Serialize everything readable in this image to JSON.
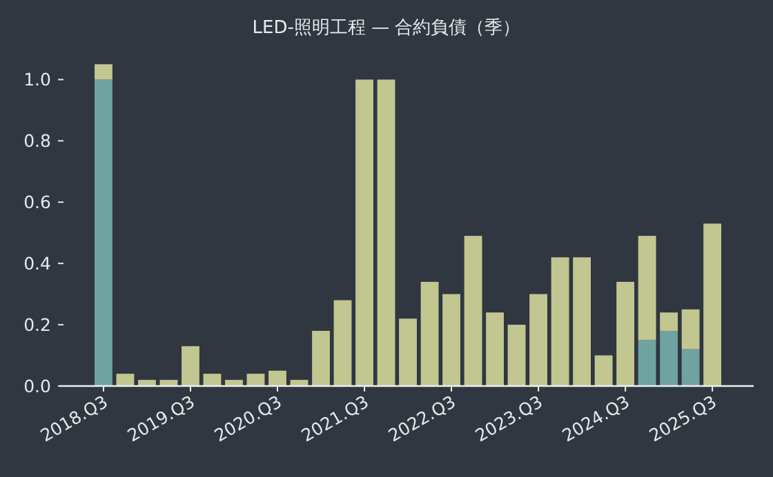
{
  "chart_data": {
    "type": "bar",
    "title": "LED-照明工程 — 合約負債（季）",
    "stacked": true,
    "grid": false,
    "categories": [
      "2018.Q3",
      null,
      null,
      null,
      "2019.Q3",
      null,
      null,
      null,
      "2020.Q3",
      null,
      null,
      null,
      "2021.Q3",
      null,
      null,
      null,
      "2022.Q3",
      null,
      null,
      null,
      "2023.Q3",
      null,
      null,
      null,
      "2024.Q3",
      null,
      null,
      null,
      "2025.Q3"
    ],
    "series": [
      {
        "color": "#6fa3a0",
        "values": [
          1.0,
          0,
          0,
          0,
          0,
          0,
          0,
          0,
          0,
          0,
          0,
          0,
          0,
          0,
          0,
          0,
          0,
          0,
          0,
          0,
          0,
          0,
          0,
          0,
          0,
          0.15,
          0.18,
          0.12,
          0
        ]
      },
      {
        "color": "#c2c690",
        "values": [
          0.05,
          0.04,
          0.02,
          0.02,
          0.13,
          0.04,
          0.02,
          0.04,
          0.05,
          0.02,
          0.18,
          0.28,
          1.0,
          1.0,
          0.22,
          0.34,
          0.3,
          0.49,
          0.24,
          0.2,
          0.3,
          0.42,
          0.42,
          0.1,
          0.34,
          0.34,
          0.06,
          0.13,
          0.53
        ]
      }
    ],
    "ylim": [
      0,
      1.05
    ],
    "yticks": [
      {
        "value": 0,
        "label": "0.0"
      },
      {
        "value": 0.2,
        "label": "0.2"
      },
      {
        "value": 0.4,
        "label": "0.4"
      },
      {
        "value": 0.6,
        "label": "0.6"
      },
      {
        "value": 0.8,
        "label": "0.8"
      },
      {
        "value": 1,
        "label": "1.0"
      }
    ]
  }
}
